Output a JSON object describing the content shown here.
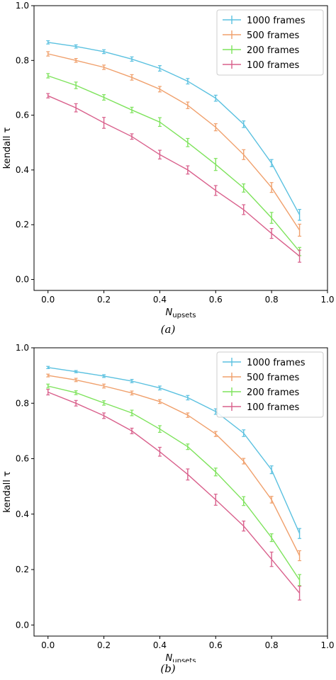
{
  "colors": {
    "series": [
      "#5bc1e0",
      "#f0a06c",
      "#7ee35c",
      "#d9608c"
    ]
  },
  "chart_data": [
    {
      "type": "line",
      "panel_label": "(a)",
      "xlabel_main": "N",
      "xlabel_sub": "upsets",
      "ylabel": "kendall τ",
      "xlim": [
        -0.05,
        1.0
      ],
      "ylim": [
        -0.04,
        1.0
      ],
      "xticks": [
        "0.0",
        "0.2",
        "0.4",
        "0.6",
        "0.8",
        "1.0"
      ],
      "yticks": [
        "0.0",
        "0.2",
        "0.4",
        "0.6",
        "0.8",
        "1.0"
      ],
      "legend_position": "top-right",
      "grid": false,
      "x": [
        0.0,
        0.1,
        0.2,
        0.3,
        0.4,
        0.5,
        0.6,
        0.7,
        0.8,
        0.9
      ],
      "series": [
        {
          "name": "1000 frames",
          "values": [
            0.866,
            0.851,
            0.832,
            0.805,
            0.771,
            0.724,
            0.662,
            0.567,
            0.425,
            0.236
          ],
          "errors": [
            0.006,
            0.006,
            0.007,
            0.008,
            0.01,
            0.01,
            0.011,
            0.012,
            0.013,
            0.02
          ]
        },
        {
          "name": "500 frames",
          "values": [
            0.824,
            0.8,
            0.775,
            0.738,
            0.695,
            0.636,
            0.556,
            0.456,
            0.336,
            0.18
          ],
          "errors": [
            0.008,
            0.007,
            0.008,
            0.01,
            0.01,
            0.012,
            0.013,
            0.018,
            0.018,
            0.022
          ]
        },
        {
          "name": "200 frames",
          "values": [
            0.744,
            0.709,
            0.665,
            0.619,
            0.575,
            0.5,
            0.42,
            0.334,
            0.225,
            0.102
          ],
          "errors": [
            0.008,
            0.012,
            0.01,
            0.01,
            0.016,
            0.015,
            0.022,
            0.015,
            0.02,
            0.015
          ]
        },
        {
          "name": "100 frames",
          "values": [
            0.671,
            0.627,
            0.572,
            0.522,
            0.456,
            0.4,
            0.325,
            0.255,
            0.168,
            0.085
          ],
          "errors": [
            0.008,
            0.015,
            0.02,
            0.01,
            0.016,
            0.015,
            0.018,
            0.018,
            0.018,
            0.022
          ]
        }
      ]
    },
    {
      "type": "line",
      "panel_label": "(b)",
      "xlabel_main": "N",
      "xlabel_sub": "upsets",
      "ylabel": "kendall τ",
      "xlim": [
        -0.05,
        1.0
      ],
      "ylim": [
        -0.04,
        1.0
      ],
      "xticks": [
        "0.0",
        "0.2",
        "0.4",
        "0.6",
        "0.8",
        "1.0"
      ],
      "yticks": [
        "0.0",
        "0.2",
        "0.4",
        "0.6",
        "0.8",
        "1.0"
      ],
      "legend_position": "top-right",
      "grid": false,
      "x": [
        0.0,
        0.1,
        0.2,
        0.3,
        0.4,
        0.5,
        0.6,
        0.7,
        0.8,
        0.9
      ],
      "series": [
        {
          "name": "1000 frames",
          "values": [
            0.929,
            0.914,
            0.898,
            0.88,
            0.855,
            0.82,
            0.77,
            0.692,
            0.56,
            0.33
          ],
          "errors": [
            0.004,
            0.004,
            0.005,
            0.006,
            0.007,
            0.008,
            0.01,
            0.012,
            0.014,
            0.018
          ]
        },
        {
          "name": "500 frames",
          "values": [
            0.9,
            0.884,
            0.862,
            0.837,
            0.806,
            0.757,
            0.689,
            0.591,
            0.452,
            0.25
          ],
          "errors": [
            0.005,
            0.006,
            0.007,
            0.007,
            0.007,
            0.008,
            0.009,
            0.01,
            0.012,
            0.018
          ]
        },
        {
          "name": "200 frames",
          "values": [
            0.862,
            0.838,
            0.801,
            0.765,
            0.707,
            0.643,
            0.552,
            0.447,
            0.315,
            0.162
          ],
          "errors": [
            0.007,
            0.007,
            0.008,
            0.01,
            0.012,
            0.01,
            0.014,
            0.016,
            0.014,
            0.02
          ]
        },
        {
          "name": "100 frames",
          "values": [
            0.84,
            0.8,
            0.755,
            0.7,
            0.625,
            0.543,
            0.452,
            0.357,
            0.237,
            0.115
          ],
          "errors": [
            0.01,
            0.01,
            0.01,
            0.01,
            0.016,
            0.02,
            0.02,
            0.018,
            0.026,
            0.025
          ]
        }
      ]
    }
  ]
}
